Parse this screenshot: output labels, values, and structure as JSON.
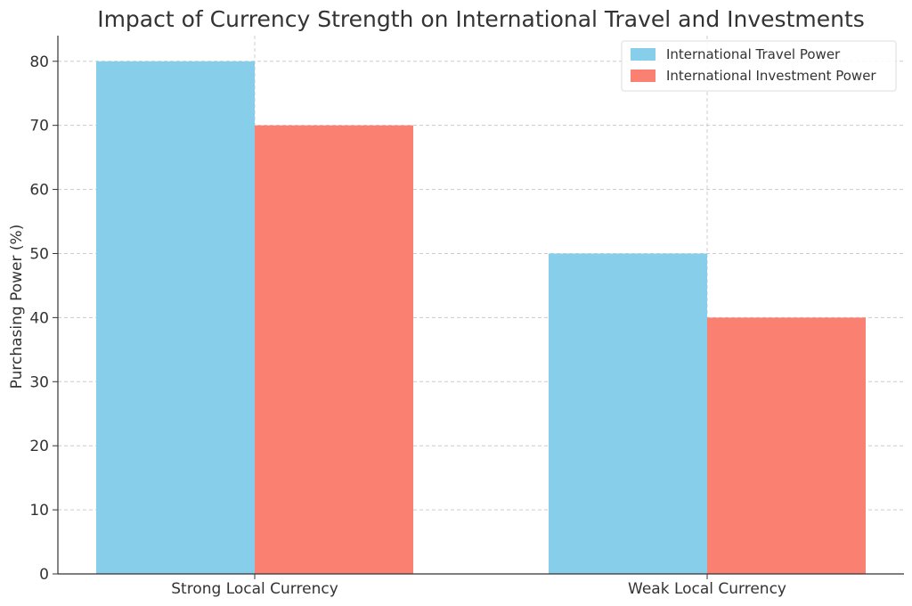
{
  "chart_data": {
    "type": "bar",
    "title": "Impact of Currency Strength on International Travel and Investments",
    "xlabel": "",
    "ylabel": "Purchasing Power (%)",
    "categories": [
      "Strong Local Currency",
      "Weak Local Currency"
    ],
    "series": [
      {
        "name": "International Travel Power",
        "values": [
          80,
          50
        ],
        "color": "#87CEEB"
      },
      {
        "name": "International Investment Power",
        "values": [
          70,
          40
        ],
        "color": "#FA8072"
      }
    ],
    "ylim": [
      0,
      84
    ],
    "yticks": [
      0,
      10,
      20,
      30,
      40,
      50,
      60,
      70,
      80
    ],
    "grid": true,
    "legend": "top-right"
  }
}
